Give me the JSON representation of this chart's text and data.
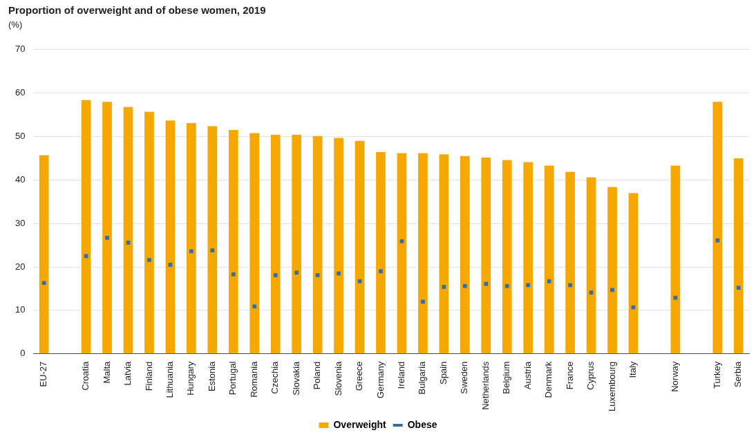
{
  "chart_data": {
    "type": "bar",
    "title": "Proportion of overweight and of obese women, 2019",
    "ylabel": "(%)",
    "categories": [
      "EU-27",
      null,
      "Croatia",
      "Malta",
      "Latvia",
      "Finland",
      "Lithuania",
      "Hungary",
      "Estonia",
      "Portugal",
      "Romania",
      "Czechia",
      "Slovakia",
      "Poland",
      "Slovenia",
      "Greece",
      "Germany",
      "Ireland",
      "Bulgaria",
      "Spain",
      "Sweden",
      "Netherlands",
      "Belgium",
      "Austria",
      "Denmark",
      "France",
      "Cyprus",
      "Luxembourg",
      "Italy",
      null,
      "Norway",
      null,
      "Turkey",
      "Serbia"
    ],
    "series": [
      {
        "name": "Overweight",
        "type": "bar",
        "color": "#f6a800",
        "values": [
          45.7,
          null,
          58.4,
          58.0,
          56.8,
          55.7,
          53.7,
          53.1,
          52.4,
          51.5,
          50.8,
          50.4,
          50.4,
          50.1,
          49.7,
          49.0,
          46.4,
          46.2,
          46.2,
          45.9,
          45.5,
          45.2,
          44.6,
          44.1,
          43.3,
          41.9,
          40.6,
          38.4,
          37.0,
          null,
          43.3,
          null,
          58.0,
          45.0
        ]
      },
      {
        "name": "Obese",
        "type": "scatter",
        "color": "#2e6db4",
        "x": [
          "EU-27",
          null,
          "Croatia",
          "Malta",
          "Latvia",
          "Finland",
          "Lithuania",
          "Hungary",
          "Estonia",
          "Portugal",
          "Romania",
          "Czechia",
          "Slovakia",
          "Poland",
          "Slovenia",
          "Greece",
          "Germany",
          "Ireland",
          "Bulgaria",
          "Spain",
          "Sweden",
          "Netherlands",
          "Belgium",
          "Austria",
          "Denmark",
          "France",
          "Cyprus",
          "Luxembourg",
          "Italy",
          null,
          "Norway",
          null,
          "Turkey",
          "Serbia"
        ],
        "values": [
          16.3,
          null,
          22.5,
          26.7,
          25.6,
          21.6,
          20.5,
          23.6,
          23.8,
          18.3,
          10.9,
          18.1,
          18.7,
          18.1,
          18.5,
          16.7,
          19.0,
          25.9,
          12.0,
          15.4,
          15.6,
          16.1,
          15.6,
          15.8,
          16.7,
          15.8,
          14.1,
          14.7,
          10.7,
          null,
          12.9,
          null,
          26.1,
          15.2
        ]
      }
    ],
    "ylim": [
      0,
      70
    ],
    "yticks": [
      0,
      10,
      20,
      30,
      40,
      50,
      60,
      70
    ],
    "grid": "y",
    "legend": "bottom"
  }
}
